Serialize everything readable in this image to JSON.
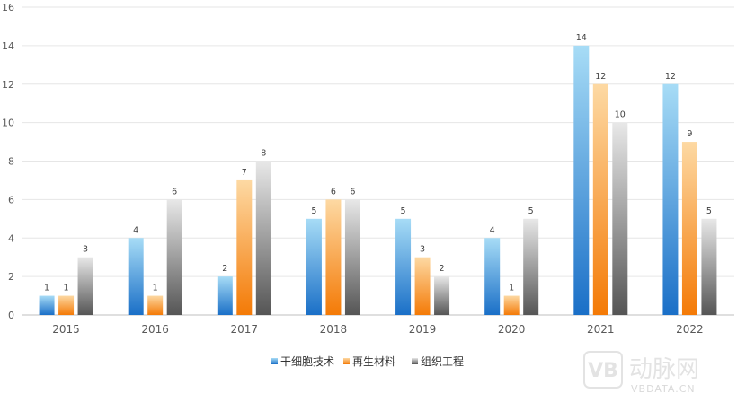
{
  "chart_data": {
    "type": "bar",
    "categories": [
      "2015",
      "2016",
      "2017",
      "2018",
      "2019",
      "2020",
      "2021",
      "2022"
    ],
    "series": [
      {
        "name": "干细胞技术",
        "values": [
          1,
          4,
          2,
          5,
          5,
          4,
          14,
          12
        ],
        "color_top": "#a7dcf6",
        "color_bottom": "#1a6fc7"
      },
      {
        "name": "再生材料",
        "values": [
          1,
          1,
          7,
          6,
          3,
          1,
          12,
          9
        ],
        "color_top": "#fdd9a3",
        "color_bottom": "#f47a06"
      },
      {
        "name": "组织工程",
        "values": [
          3,
          6,
          8,
          6,
          2,
          5,
          10,
          5
        ],
        "color_top": "#e8e8e8",
        "color_bottom": "#555555"
      }
    ],
    "ylim": [
      0,
      16
    ],
    "yticks": [
      0,
      2,
      4,
      6,
      8,
      10,
      12,
      14,
      16
    ],
    "grid": true,
    "legend": "bottom-center",
    "xlabel": "",
    "ylabel": ""
  },
  "watermark": {
    "logo_text": "动脉网",
    "url_text": "VBDATA.CN"
  }
}
